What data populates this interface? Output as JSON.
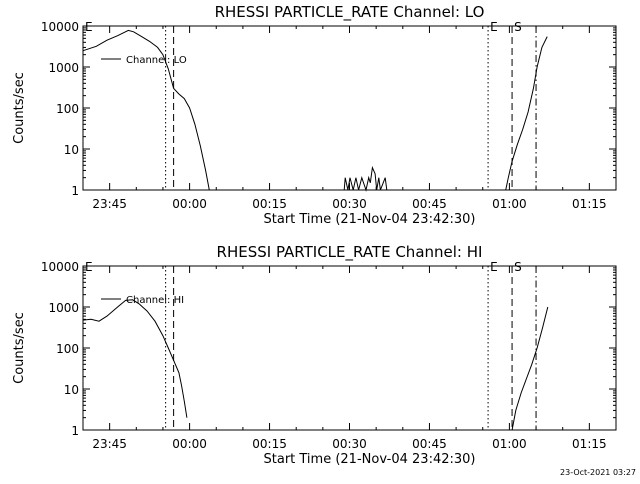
{
  "footer": {
    "timestamp": "23-Oct-2021 03:27"
  },
  "chart_data": [
    {
      "type": "line",
      "title": "RHESSI PARTICLE_RATE Channel: LO",
      "xlabel": "Start Time (21-Nov-04 23:42:30)",
      "ylabel": "Counts/sec",
      "yscale": "log",
      "ylim": [
        1,
        10000
      ],
      "xlim_min": [
        -2.5,
        97.5
      ],
      "x_unit": "minutes after 23:42:30",
      "xticks": [
        {
          "x": 2.5,
          "label": "23:45"
        },
        {
          "x": 17.5,
          "label": "00:00"
        },
        {
          "x": 32.5,
          "label": "00:15"
        },
        {
          "x": 47.5,
          "label": "00:30"
        },
        {
          "x": 62.5,
          "label": "00:45"
        },
        {
          "x": 77.5,
          "label": "01:00"
        },
        {
          "x": 92.5,
          "label": "01:15"
        }
      ],
      "yticks": [
        1,
        10,
        100,
        1000,
        10000
      ],
      "yticklabels": [
        "1",
        "10",
        "100",
        "1000",
        "10000"
      ],
      "legend": {
        "label": "Channel: LO",
        "placement": "top-left"
      },
      "markers": [
        {
          "x": -2.5,
          "style": "solid",
          "label": "E"
        },
        {
          "x": 13.0,
          "style": "dotted",
          "label": ""
        },
        {
          "x": 14.5,
          "style": "dashed",
          "label": ""
        },
        {
          "x": 73.5,
          "style": "dotted",
          "label": "E"
        },
        {
          "x": 78.0,
          "style": "dashed",
          "label": "S"
        },
        {
          "x": 82.5,
          "style": "dashdot",
          "label": ""
        }
      ],
      "series": [
        {
          "segments": [
            [
              [
                -2.5,
                2500
              ],
              [
                0,
                3200
              ],
              [
                2,
                4500
              ],
              [
                4,
                5800
              ],
              [
                6,
                7800
              ],
              [
                7,
                7200
              ],
              [
                8.5,
                5500
              ],
              [
                10,
                4200
              ],
              [
                11.5,
                3000
              ],
              [
                12.5,
                2000
              ],
              [
                13.5,
                900
              ],
              [
                14.5,
                300
              ],
              [
                15.5,
                220
              ],
              [
                16.5,
                170
              ],
              [
                17.5,
                100
              ],
              [
                18.5,
                40
              ],
              [
                19.5,
                12
              ],
              [
                20.5,
                3
              ],
              [
                21.2,
                1
              ]
            ],
            [
              [
                46.5,
                1
              ],
              [
                46.7,
                2
              ],
              [
                47.2,
                1
              ],
              [
                47.6,
                2
              ],
              [
                48.2,
                1
              ],
              [
                48.7,
                2
              ],
              [
                49.2,
                1
              ],
              [
                49.8,
                2
              ],
              [
                50.6,
                1
              ],
              [
                51.1,
                2
              ],
              [
                51.4,
                1.5
              ],
              [
                51.8,
                3.5
              ],
              [
                52.3,
                2.5
              ],
              [
                52.6,
                1
              ],
              [
                53.0,
                2
              ],
              [
                53.3,
                1
              ],
              [
                54.2,
                2
              ],
              [
                54.5,
                1
              ]
            ],
            [
              [
                76.8,
                1
              ],
              [
                77.3,
                2
              ],
              [
                78,
                5
              ],
              [
                79,
                13
              ],
              [
                80,
                30
              ],
              [
                81,
                80
              ],
              [
                82,
                300
              ],
              [
                82.7,
                1000
              ],
              [
                83.6,
                3000
              ],
              [
                84.6,
                5500
              ]
            ]
          ]
        }
      ]
    },
    {
      "type": "line",
      "title": "RHESSI PARTICLE_RATE Channel: HI",
      "xlabel": "Start Time (21-Nov-04 23:42:30)",
      "ylabel": "Counts/sec",
      "yscale": "log",
      "ylim": [
        1,
        10000
      ],
      "xlim_min": [
        -2.5,
        97.5
      ],
      "x_unit": "minutes after 23:42:30",
      "xticks": [
        {
          "x": 2.5,
          "label": "23:45"
        },
        {
          "x": 17.5,
          "label": "00:00"
        },
        {
          "x": 32.5,
          "label": "00:15"
        },
        {
          "x": 47.5,
          "label": "00:30"
        },
        {
          "x": 62.5,
          "label": "00:45"
        },
        {
          "x": 77.5,
          "label": "01:00"
        },
        {
          "x": 92.5,
          "label": "01:15"
        }
      ],
      "yticks": [
        1,
        10,
        100,
        1000,
        10000
      ],
      "yticklabels": [
        "1",
        "10",
        "100",
        "1000",
        "10000"
      ],
      "legend": {
        "label": "Channel: HI",
        "placement": "top-left"
      },
      "markers": [
        {
          "x": -2.5,
          "style": "solid",
          "label": "E"
        },
        {
          "x": 13.0,
          "style": "dotted",
          "label": ""
        },
        {
          "x": 14.5,
          "style": "dashed",
          "label": ""
        },
        {
          "x": 73.5,
          "style": "dotted",
          "label": "E"
        },
        {
          "x": 78.0,
          "style": "dashed",
          "label": "S"
        },
        {
          "x": 82.5,
          "style": "dashdot",
          "label": ""
        }
      ],
      "series": [
        {
          "segments": [
            [
              [
                -2.5,
                480
              ],
              [
                -1,
                500
              ],
              [
                0.5,
                450
              ],
              [
                2,
                600
              ],
              [
                4,
                1000
              ],
              [
                5.5,
                1450
              ],
              [
                6.8,
                1500
              ],
              [
                8,
                1200
              ],
              [
                9.5,
                800
              ],
              [
                11,
                450
              ],
              [
                12.5,
                200
              ],
              [
                13.5,
                100
              ],
              [
                14.5,
                50
              ],
              [
                15.5,
                25
              ],
              [
                16,
                12
              ],
              [
                16.5,
                5
              ],
              [
                17,
                2
              ]
            ],
            [
              [
                78.0,
                1
              ],
              [
                78.7,
                3
              ],
              [
                79.7,
                8
              ],
              [
                80.7,
                18
              ],
              [
                81.7,
                40
              ],
              [
                82.7,
                100
              ],
              [
                83.7,
                300
              ],
              [
                84.7,
                1000
              ]
            ]
          ]
        }
      ]
    }
  ]
}
